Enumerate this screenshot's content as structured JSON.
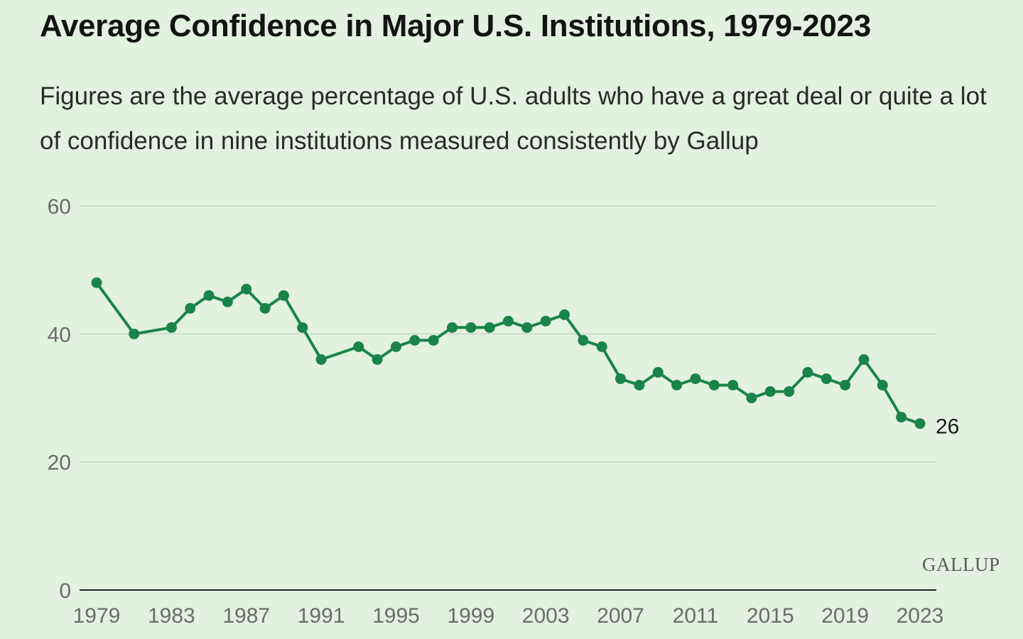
{
  "header": {
    "title": "Average Confidence in Major U.S. Institutions, 1979-2023",
    "subtitle": "Figures are the average percentage of U.S. adults who have a great deal or quite a lot of confidence in nine institutions measured consistently by Gallup"
  },
  "branding": {
    "logo_text": "GALLUP"
  },
  "colors": {
    "line": "#1a8448",
    "gridline": "#c9d8c6",
    "axis": "#222222",
    "background": "#e3f1e0"
  },
  "chart_data": {
    "type": "line",
    "title": "Average Confidence in Major U.S. Institutions, 1979-2023",
    "xlabel": "",
    "ylabel": "",
    "xlim": [
      1979,
      2023
    ],
    "ylim": [
      0,
      60
    ],
    "y_ticks": [
      0,
      20,
      40,
      60
    ],
    "x_ticks": [
      1979,
      1983,
      1987,
      1991,
      1995,
      1999,
      2003,
      2007,
      2011,
      2015,
      2019,
      2023
    ],
    "grid": true,
    "legend": "none",
    "end_label": "26",
    "series": [
      {
        "x": [
          1979,
          1981,
          1983,
          1984,
          1985,
          1986,
          1987,
          1988,
          1989,
          1990,
          1991,
          1993,
          1994,
          1995,
          1996,
          1997,
          1998,
          1999,
          2000,
          2001,
          2002,
          2003,
          2004,
          2005,
          2006,
          2007,
          2008,
          2009,
          2010,
          2011,
          2012,
          2013,
          2014,
          2015,
          2016,
          2017,
          2018,
          2019,
          2020,
          2021,
          2022,
          2023
        ],
        "y": [
          48,
          40,
          41,
          44,
          46,
          45,
          47,
          44,
          46,
          41,
          36,
          38,
          36,
          38,
          39,
          39,
          41,
          41,
          41,
          42,
          41,
          42,
          43,
          39,
          38,
          33,
          32,
          34,
          32,
          33,
          32,
          32,
          30,
          31,
          31,
          34,
          33,
          32,
          36,
          32,
          27,
          26
        ]
      }
    ]
  }
}
